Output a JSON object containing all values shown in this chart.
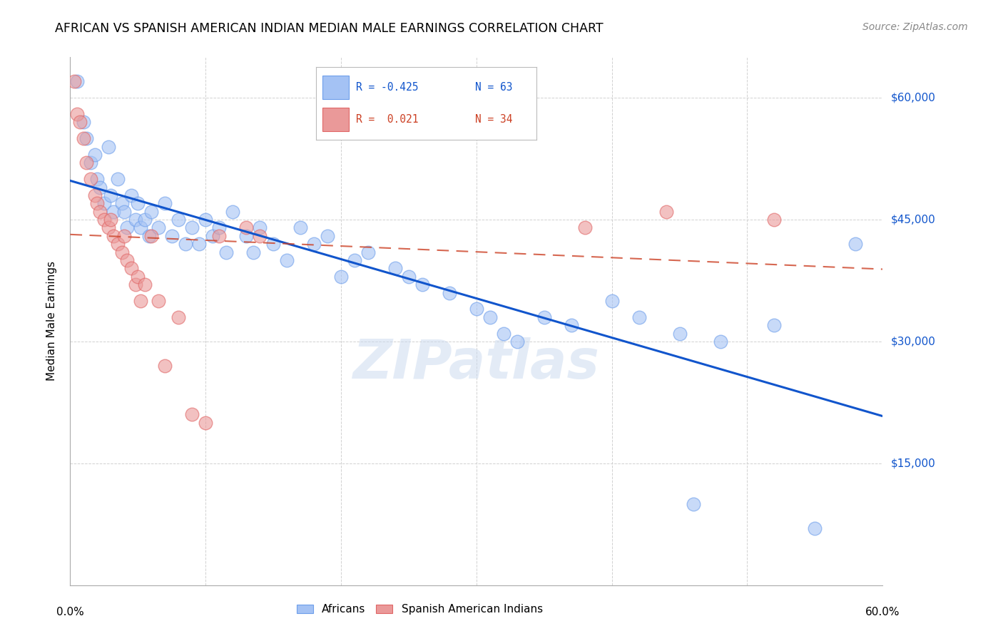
{
  "title": "AFRICAN VS SPANISH AMERICAN INDIAN MEDIAN MALE EARNINGS CORRELATION CHART",
  "source": "Source: ZipAtlas.com",
  "ylabel": "Median Male Earnings",
  "ytick_labels": [
    "$15,000",
    "$30,000",
    "$45,000",
    "$60,000"
  ],
  "ytick_values": [
    15000,
    30000,
    45000,
    60000
  ],
  "ymin": 0,
  "ymax": 65000,
  "xmin": 0.0,
  "xmax": 0.6,
  "blue_color": "#a4c2f4",
  "pink_color": "#ea9999",
  "blue_edge_color": "#6d9eeb",
  "pink_edge_color": "#e06666",
  "blue_line_color": "#1155cc",
  "pink_line_color": "#cc4125",
  "watermark": "ZIPatlas",
  "blue_x": [
    0.005,
    0.01,
    0.012,
    0.015,
    0.018,
    0.02,
    0.022,
    0.025,
    0.028,
    0.03,
    0.032,
    0.035,
    0.038,
    0.04,
    0.042,
    0.045,
    0.048,
    0.05,
    0.052,
    0.055,
    0.058,
    0.06,
    0.065,
    0.07,
    0.075,
    0.08,
    0.085,
    0.09,
    0.095,
    0.1,
    0.105,
    0.11,
    0.115,
    0.12,
    0.13,
    0.135,
    0.14,
    0.15,
    0.16,
    0.17,
    0.18,
    0.19,
    0.2,
    0.21,
    0.22,
    0.24,
    0.25,
    0.26,
    0.28,
    0.3,
    0.31,
    0.32,
    0.33,
    0.35,
    0.37,
    0.4,
    0.42,
    0.45,
    0.46,
    0.48,
    0.52,
    0.55,
    0.58
  ],
  "blue_y": [
    62000,
    57000,
    55000,
    52000,
    53000,
    50000,
    49000,
    47000,
    54000,
    48000,
    46000,
    50000,
    47000,
    46000,
    44000,
    48000,
    45000,
    47000,
    44000,
    45000,
    43000,
    46000,
    44000,
    47000,
    43000,
    45000,
    42000,
    44000,
    42000,
    45000,
    43000,
    44000,
    41000,
    46000,
    43000,
    41000,
    44000,
    42000,
    40000,
    44000,
    42000,
    43000,
    38000,
    40000,
    41000,
    39000,
    38000,
    37000,
    36000,
    34000,
    33000,
    31000,
    30000,
    33000,
    32000,
    35000,
    33000,
    31000,
    10000,
    30000,
    32000,
    7000,
    42000
  ],
  "pink_x": [
    0.003,
    0.005,
    0.007,
    0.01,
    0.012,
    0.015,
    0.018,
    0.02,
    0.022,
    0.025,
    0.028,
    0.03,
    0.032,
    0.035,
    0.038,
    0.04,
    0.042,
    0.045,
    0.048,
    0.05,
    0.052,
    0.055,
    0.06,
    0.065,
    0.07,
    0.08,
    0.09,
    0.1,
    0.11,
    0.13,
    0.14,
    0.38,
    0.44,
    0.52
  ],
  "pink_y": [
    62000,
    58000,
    57000,
    55000,
    52000,
    50000,
    48000,
    47000,
    46000,
    45000,
    44000,
    45000,
    43000,
    42000,
    41000,
    43000,
    40000,
    39000,
    37000,
    38000,
    35000,
    37000,
    43000,
    35000,
    27000,
    33000,
    21000,
    20000,
    43000,
    44000,
    43000,
    44000,
    46000,
    45000
  ]
}
